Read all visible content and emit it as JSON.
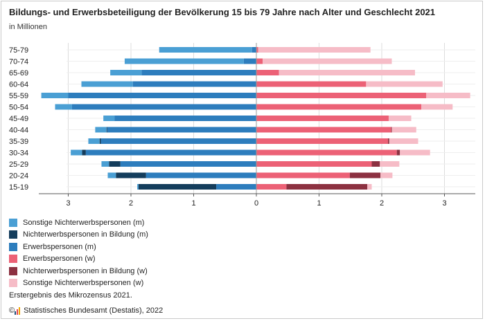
{
  "header": {
    "title": "Bildungs- und Erwerbsbeteiligung der Bevölkerung 15 bis 79 Jahre nach Alter und Geschlecht 2021",
    "subtitle": "in Millionen"
  },
  "note": "Erstergebnis des Mikrozensus 2021.",
  "source": {
    "copyright": "©",
    "text": "Statistisches Bundesamt (Destatis), 2022"
  },
  "colors": {
    "sonstige_m": "#4a9fd4",
    "bildung_m": "#143d5c",
    "erwerb_m": "#2d7dbd",
    "erwerb_w": "#ec6176",
    "bildung_w": "#8c3141",
    "sonstige_w": "#f6bcc7",
    "grid": "#dddddd",
    "axis": "#555555",
    "logo1": "#1a4f7a",
    "logo2": "#e3434f",
    "logo3": "#f0a500"
  },
  "chart_data": {
    "type": "bar",
    "orientation": "horizontal-stacked-diverging",
    "title": "Bildungs- und Erwerbsbeteiligung der Bevölkerung 15 bis 79 Jahre nach Alter und Geschlecht 2021",
    "subtitle": "in Millionen",
    "categories": [
      "75-79",
      "70-74",
      "65-69",
      "60-64",
      "55-59",
      "50-54",
      "45-49",
      "40-44",
      "35-39",
      "30-34",
      "25-29",
      "20-24",
      "15-19"
    ],
    "xlim": [
      -3.5,
      3.5
    ],
    "xticks": [
      -3,
      -2,
      -1,
      0,
      1,
      2,
      3
    ],
    "xtick_labels": [
      "3",
      "2",
      "1",
      "0",
      "1",
      "2",
      "3"
    ],
    "grid": true,
    "legend_position": "bottom-left",
    "series": [
      {
        "name": "Sonstige Nichterwerbspersonen (m)",
        "side": "m",
        "key": "sonstige_m",
        "values": [
          1.48,
          1.9,
          0.5,
          0.82,
          0.43,
          0.27,
          0.18,
          0.18,
          0.18,
          0.18,
          0.12,
          0.13,
          0.02
        ]
      },
      {
        "name": "Nichterwerbspersonen in Bildung (m)",
        "side": "m",
        "key": "bildung_m",
        "values": [
          0.0,
          0.0,
          0.0,
          0.0,
          0.0,
          0.0,
          0.0,
          0.01,
          0.02,
          0.06,
          0.18,
          0.48,
          1.24
        ]
      },
      {
        "name": "Erwerbspersonen (m)",
        "side": "m",
        "key": "erwerb_m",
        "values": [
          0.07,
          0.2,
          1.83,
          1.97,
          3.0,
          2.94,
          2.26,
          2.38,
          2.48,
          2.72,
          2.17,
          1.76,
          0.64
        ]
      },
      {
        "name": "Erwerbspersonen (w)",
        "side": "w",
        "key": "erwerb_w",
        "values": [
          0.03,
          0.1,
          0.36,
          1.75,
          2.71,
          2.63,
          2.11,
          2.15,
          2.1,
          2.24,
          1.84,
          1.49,
          0.48
        ]
      },
      {
        "name": "Nichterwerbspersonen in Bildung (w)",
        "side": "w",
        "key": "bildung_w",
        "values": [
          0.0,
          0.0,
          0.0,
          0.0,
          0.0,
          0.0,
          0.0,
          0.01,
          0.02,
          0.05,
          0.13,
          0.49,
          1.29
        ]
      },
      {
        "name": "Sonstige Nichterwerbspersonen (w)",
        "side": "w",
        "key": "sonstige_w",
        "values": [
          1.79,
          2.06,
          2.17,
          1.22,
          0.7,
          0.5,
          0.36,
          0.39,
          0.46,
          0.48,
          0.31,
          0.19,
          0.07
        ]
      }
    ]
  }
}
